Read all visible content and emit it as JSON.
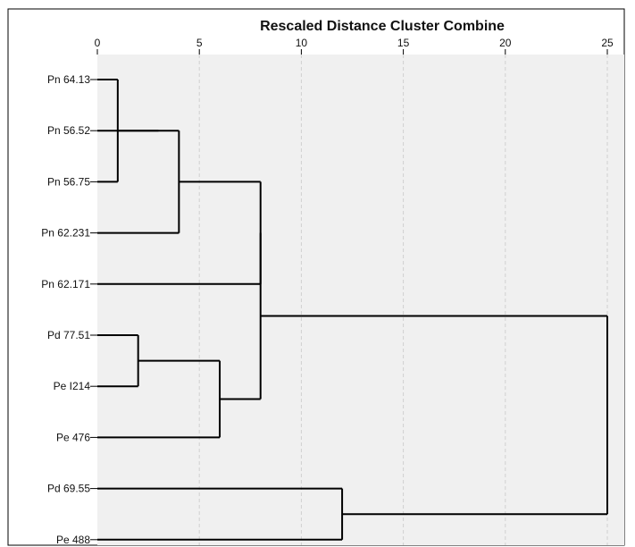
{
  "chart_data": {
    "type": "dendrogram",
    "title": "Rescaled Distance Cluster Combine",
    "xlim": [
      0,
      25
    ],
    "xticks": [
      0,
      5,
      10,
      15,
      20,
      25
    ],
    "grid": true,
    "leaves": [
      "Pn 64.13",
      "Pn 56.52",
      "Pn 56.75",
      "Pn 62.231",
      "Pn 62.171",
      "Pd 77.51",
      "Pe I214",
      "Pe 476",
      "Pd 69.55",
      "Pe 488"
    ],
    "merges": [
      {
        "a": 0,
        "b": 2,
        "distance": 1
      },
      {
        "a": 5,
        "b": 6,
        "distance": 2
      },
      {
        "a": 1,
        "b": "m0",
        "distance": 3
      },
      {
        "a": "m2",
        "b": 3,
        "distance": 4
      },
      {
        "a": "m1",
        "b": 7,
        "distance": 6
      },
      {
        "a": "m3",
        "b": 4,
        "distance": 8
      },
      {
        "a": "m5",
        "b": "m4",
        "distance": 8
      },
      {
        "a": 8,
        "b": 9,
        "distance": 12
      },
      {
        "a": "m6",
        "b": "m7",
        "distance": 25
      }
    ],
    "colors": {
      "plot_background": "#f0f0f0",
      "line": "#000000",
      "grid": "#d0d0d0"
    }
  }
}
